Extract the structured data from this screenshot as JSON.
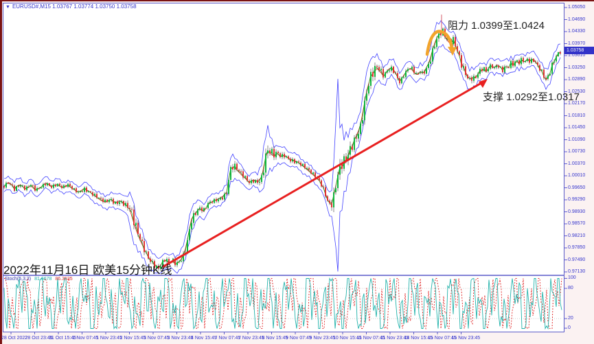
{
  "titlebar": {
    "collapse_icon": "▼",
    "text": "EURUSD#,M15  1.03767 1.03774 1.03750 1.03758",
    "symbol": "EURUSD#",
    "timeframe": "M15",
    "quotes": [
      "1.03767",
      "1.03774",
      "1.03750",
      "1.03758"
    ]
  },
  "annotations": {
    "resistance_label": "阻力 1.0399至1.0424",
    "support_label": "支撑 1.0292至1.0317",
    "date_label": "2022年11月16日 欧美15分钟K线"
  },
  "price_axis": {
    "current_price": "1.03758",
    "text_color": "#3535cd",
    "current_price_bg": "#3232c8",
    "labels": [
      "1.05050",
      "1.04690",
      "1.04330",
      "1.03970",
      "1.03610",
      "1.03250",
      "1.02890",
      "1.02530",
      "1.02170",
      "1.01810",
      "1.01450",
      "1.01090",
      "1.00730",
      "1.00370",
      "1.00010",
      "0.99650",
      "0.99290",
      "0.98930",
      "0.98570",
      "0.98210",
      "0.97850",
      "0.97490",
      "0.97130"
    ]
  },
  "time_axis": {
    "labels": [
      "28 Oct 2022",
      "28 Oct 23:45",
      "31 Oct 15:45",
      "1 Nov 07:45",
      "1 Nov 23:45",
      "2 Nov 15:45",
      "3 Nov 07:45",
      "3 Nov 23:45",
      "4 Nov 15:45",
      "7 Nov 07:45",
      "7 Nov 23:45",
      "8 Nov 15:45",
      "9 Nov 07:45",
      "9 Nov 23:45",
      "10 Nov 15:45",
      "11 Nov 07:45",
      "11 Nov 23:45",
      "14 Nov 15:45",
      "15 Nov 07:45",
      "15 Nov 23:45"
    ]
  },
  "indicator": {
    "name": "Stoch(5,3,3)",
    "k_value": "81.6678",
    "d_value": "86.3535",
    "scale_labels": [
      "100",
      "80",
      "20",
      "0"
    ]
  },
  "frame": {
    "background": "#fbf2f2",
    "plot_background": "#ffffff",
    "window_border_color": "#5a5ac8",
    "edge_color": "#7a1212",
    "axis_text_color": "#3535cd"
  },
  "chart_data": [
    {
      "type": "candlestick",
      "symbol": "EURUSD#",
      "timeframe": "M15",
      "title": "EURUSD#,M15",
      "ohlc_display": {
        "open": 1.03767,
        "high": 1.03774,
        "low": 1.0375,
        "close": 1.03758
      },
      "current_price": 1.03758,
      "ylim": [
        0.9709,
        1.0507
      ],
      "y_ticks": [
        1.0505,
        1.0469,
        1.0433,
        1.0397,
        1.0361,
        1.0325,
        1.0289,
        1.0253,
        1.0217,
        1.0181,
        1.0145,
        1.0109,
        1.0073,
        1.0037,
        1.0001,
        0.9965,
        0.9929,
        0.9893,
        0.9857,
        0.9821,
        0.9785,
        0.9749,
        0.9713
      ],
      "x_ticks": [
        "28 Oct 2022",
        "28 Oct 23:45",
        "31 Oct 15:45",
        "1 Nov 07:45",
        "1 Nov 23:45",
        "2 Nov 15:45",
        "3 Nov 07:45",
        "3 Nov 23:45",
        "4 Nov 15:45",
        "7 Nov 07:45",
        "7 Nov 23:45",
        "8 Nov 15:45",
        "9 Nov 07:45",
        "9 Nov 23:45",
        "10 Nov 15:45",
        "11 Nov 07:45",
        "11 Nov 23:45",
        "14 Nov 15:45",
        "15 Nov 07:45",
        "15 Nov 23:45"
      ],
      "resistance_zone": [
        1.0399,
        1.0424
      ],
      "support_zone": [
        1.0292,
        1.0317
      ],
      "session_peak_wick": {
        "x": 643,
        "from": 1.0484,
        "to": 1.0427
      },
      "trendline": {
        "x_from": 237,
        "price_from": 0.9728,
        "x_to": 706,
        "price_to": 1.0285,
        "color": "#e82020"
      },
      "arc_arrow": {
        "x_center": 640,
        "apex_price": 1.0437,
        "color": "#f2a42c"
      },
      "colors": {
        "bollinger": "#4040ff",
        "ma_fast": "#18a818",
        "ma_slow": "#dd2222",
        "up": "#0fb53d",
        "down": "#e03232",
        "wick": "#3a3a3a"
      },
      "close_path": [
        [
          5,
          0.9968
        ],
        [
          13,
          0.9983
        ],
        [
          21,
          0.9964
        ],
        [
          29,
          0.9976
        ],
        [
          37,
          0.996
        ],
        [
          45,
          0.9972
        ],
        [
          52,
          0.9956
        ],
        [
          60,
          0.9968
        ],
        [
          67,
          0.9981
        ],
        [
          75,
          0.997
        ],
        [
          83,
          0.9976
        ],
        [
          91,
          0.9964
        ],
        [
          99,
          0.9972
        ],
        [
          107,
          0.996
        ],
        [
          115,
          0.9952
        ],
        [
          123,
          0.9964
        ],
        [
          131,
          0.9952
        ],
        [
          139,
          0.9939
        ],
        [
          147,
          0.9927
        ],
        [
          154,
          0.9921
        ],
        [
          161,
          0.9931
        ],
        [
          168,
          0.9921
        ],
        [
          175,
          0.9927
        ],
        [
          182,
          0.9917
        ],
        [
          189,
          0.99
        ],
        [
          194,
          0.9865
        ],
        [
          200,
          0.9828
        ],
        [
          206,
          0.9799
        ],
        [
          211,
          0.9777
        ],
        [
          216,
          0.9758
        ],
        [
          221,
          0.9746
        ],
        [
          226,
          0.9734
        ],
        [
          231,
          0.9725
        ],
        [
          236,
          0.974
        ],
        [
          241,
          0.975
        ],
        [
          246,
          0.9738
        ],
        [
          251,
          0.9746
        ],
        [
          256,
          0.9734
        ],
        [
          261,
          0.9744
        ],
        [
          266,
          0.9758
        ],
        [
          270,
          0.9783
        ],
        [
          274,
          0.982
        ],
        [
          278,
          0.9869
        ],
        [
          283,
          0.9886
        ],
        [
          290,
          0.9902
        ],
        [
          297,
          0.9894
        ],
        [
          303,
          0.9915
        ],
        [
          310,
          0.9925
        ],
        [
          317,
          0.9931
        ],
        [
          324,
          0.9939
        ],
        [
          330,
          0.9952
        ],
        [
          335,
          1.0018
        ],
        [
          340,
          1.003
        ],
        [
          345,
          1.0018
        ],
        [
          351,
          1.0005
        ],
        [
          357,
          0.9993
        ],
        [
          363,
          0.9981
        ],
        [
          369,
          0.9989
        ],
        [
          375,
          0.9985
        ],
        [
          381,
          0.9997
        ],
        [
          386,
          1.005
        ],
        [
          390,
          1.0075
        ],
        [
          394,
          1.0067
        ],
        [
          399,
          1.0059
        ],
        [
          404,
          1.0067
        ],
        [
          409,
          1.0057
        ],
        [
          414,
          1.0063
        ],
        [
          420,
          1.0054
        ],
        [
          427,
          1.0048
        ],
        [
          434,
          1.0042
        ],
        [
          441,
          1.003
        ],
        [
          448,
          1.0018
        ],
        [
          455,
          1.0005
        ],
        [
          461,
          0.9995
        ],
        [
          467,
          0.9981
        ],
        [
          472,
          0.996
        ],
        [
          477,
          0.9931
        ],
        [
          481,
          0.9915
        ],
        [
          485,
          0.9927
        ],
        [
          489,
          0.9972
        ],
        [
          493,
          1.0009
        ],
        [
          497,
          1.0026
        ],
        [
          501,
          1.0034
        ],
        [
          505,
          1.005
        ],
        [
          509,
          1.0069
        ],
        [
          514,
          1.0098
        ],
        [
          519,
          1.0122
        ],
        [
          524,
          1.0145
        ],
        [
          529,
          1.0199
        ],
        [
          534,
          1.0256
        ],
        [
          539,
          1.0293
        ],
        [
          544,
          1.031
        ],
        [
          549,
          1.0322
        ],
        [
          554,
          1.0312
        ],
        [
          559,
          1.0297
        ],
        [
          564,
          1.0316
        ],
        [
          569,
          1.0326
        ],
        [
          574,
          1.0318
        ],
        [
          579,
          1.0297
        ],
        [
          583,
          1.0283
        ],
        [
          588,
          1.0303
        ],
        [
          593,
          1.0316
        ],
        [
          598,
          1.0324
        ],
        [
          603,
          1.031
        ],
        [
          608,
          1.0301
        ],
        [
          612,
          1.0314
        ],
        [
          616,
          1.0306
        ],
        [
          620,
          1.0322
        ],
        [
          624,
          1.0338
        ],
        [
          628,
          1.0363
        ],
        [
          632,
          1.0394
        ],
        [
          636,
          1.0414
        ],
        [
          640,
          1.0425
        ],
        [
          644,
          1.0433
        ],
        [
          648,
          1.0417
        ],
        [
          652,
          1.0404
        ],
        [
          656,
          1.0396
        ],
        [
          660,
          1.0406
        ],
        [
          664,
          1.0388
        ],
        [
          668,
          1.0365
        ],
        [
          672,
          1.034
        ],
        [
          676,
          1.0322
        ],
        [
          680,
          1.0303
        ],
        [
          684,
          1.0291
        ],
        [
          688,
          1.0297
        ],
        [
          692,
          1.0291
        ],
        [
          696,
          1.0306
        ],
        [
          700,
          1.0314
        ],
        [
          704,
          1.032
        ],
        [
          708,
          1.0312
        ],
        [
          712,
          1.0326
        ],
        [
          716,
          1.0332
        ],
        [
          720,
          1.0324
        ],
        [
          724,
          1.0336
        ],
        [
          728,
          1.0328
        ],
        [
          732,
          1.032
        ],
        [
          736,
          1.033
        ],
        [
          740,
          1.0324
        ],
        [
          744,
          1.0338
        ],
        [
          748,
          1.033
        ],
        [
          752,
          1.0345
        ],
        [
          756,
          1.0336
        ],
        [
          760,
          1.0349
        ],
        [
          764,
          1.034
        ],
        [
          768,
          1.0351
        ],
        [
          772,
          1.0345
        ],
        [
          776,
          1.0353
        ],
        [
          780,
          1.0343
        ],
        [
          784,
          1.033
        ],
        [
          788,
          1.0318
        ],
        [
          792,
          1.0299
        ],
        [
          796,
          1.0285
        ],
        [
          800,
          1.0303
        ],
        [
          804,
          1.0328
        ],
        [
          808,
          1.0349
        ],
        [
          812,
          1.0363
        ],
        [
          816,
          1.0373
        ]
      ],
      "band_halfwidth": [
        [
          5,
          0.0019
        ],
        [
          100,
          0.0016
        ],
        [
          150,
          0.0019
        ],
        [
          185,
          0.0025
        ],
        [
          192,
          0.0062
        ],
        [
          200,
          0.0045
        ],
        [
          215,
          0.0029
        ],
        [
          230,
          0.0025
        ],
        [
          250,
          0.0021
        ],
        [
          268,
          0.0029
        ],
        [
          278,
          0.0037
        ],
        [
          290,
          0.0025
        ],
        [
          310,
          0.0019
        ],
        [
          330,
          0.0021
        ],
        [
          336,
          0.0041
        ],
        [
          345,
          0.0029
        ],
        [
          360,
          0.0021
        ],
        [
          375,
          0.0021
        ],
        [
          383,
          0.0051
        ],
        [
          388,
          0.0072
        ],
        [
          400,
          0.0029
        ],
        [
          420,
          0.0021
        ],
        [
          440,
          0.0019
        ],
        [
          460,
          0.0019
        ],
        [
          475,
          0.0025
        ],
        [
          483,
          0.0041
        ],
        [
          487,
          0.0113
        ],
        [
          491,
          0.0298
        ],
        [
          495,
          0.0144
        ],
        [
          500,
          0.0093
        ],
        [
          508,
          0.0062
        ],
        [
          516,
          0.0045
        ],
        [
          524,
          0.0041
        ],
        [
          532,
          0.0053
        ],
        [
          540,
          0.0058
        ],
        [
          548,
          0.0041
        ],
        [
          556,
          0.0029
        ],
        [
          564,
          0.0025
        ],
        [
          572,
          0.0025
        ],
        [
          580,
          0.0027
        ],
        [
          588,
          0.0025
        ],
        [
          596,
          0.0021
        ],
        [
          604,
          0.0021
        ],
        [
          612,
          0.0021
        ],
        [
          620,
          0.0025
        ],
        [
          628,
          0.0033
        ],
        [
          634,
          0.0041
        ],
        [
          640,
          0.0037
        ],
        [
          648,
          0.0033
        ],
        [
          656,
          0.0029
        ],
        [
          664,
          0.0033
        ],
        [
          672,
          0.0037
        ],
        [
          680,
          0.0033
        ],
        [
          688,
          0.0029
        ],
        [
          696,
          0.0025
        ],
        [
          704,
          0.0023
        ],
        [
          712,
          0.0021
        ],
        [
          720,
          0.0021
        ],
        [
          728,
          0.0021
        ],
        [
          736,
          0.0021
        ],
        [
          744,
          0.0021
        ],
        [
          752,
          0.0021
        ],
        [
          760,
          0.0021
        ],
        [
          768,
          0.0021
        ],
        [
          776,
          0.0021
        ],
        [
          784,
          0.0023
        ],
        [
          792,
          0.0027
        ],
        [
          800,
          0.0029
        ],
        [
          808,
          0.0025
        ],
        [
          816,
          0.0023
        ]
      ]
    },
    {
      "type": "line",
      "name": "Stoch(5,3,3)",
      "params": [
        5,
        3,
        3
      ],
      "range": [
        0,
        100
      ],
      "levels": [
        80,
        20
      ],
      "k_last": 81.6678,
      "d_last": 86.3535,
      "k_color": "#20b2aa",
      "d_color": "#e02020"
    }
  ]
}
